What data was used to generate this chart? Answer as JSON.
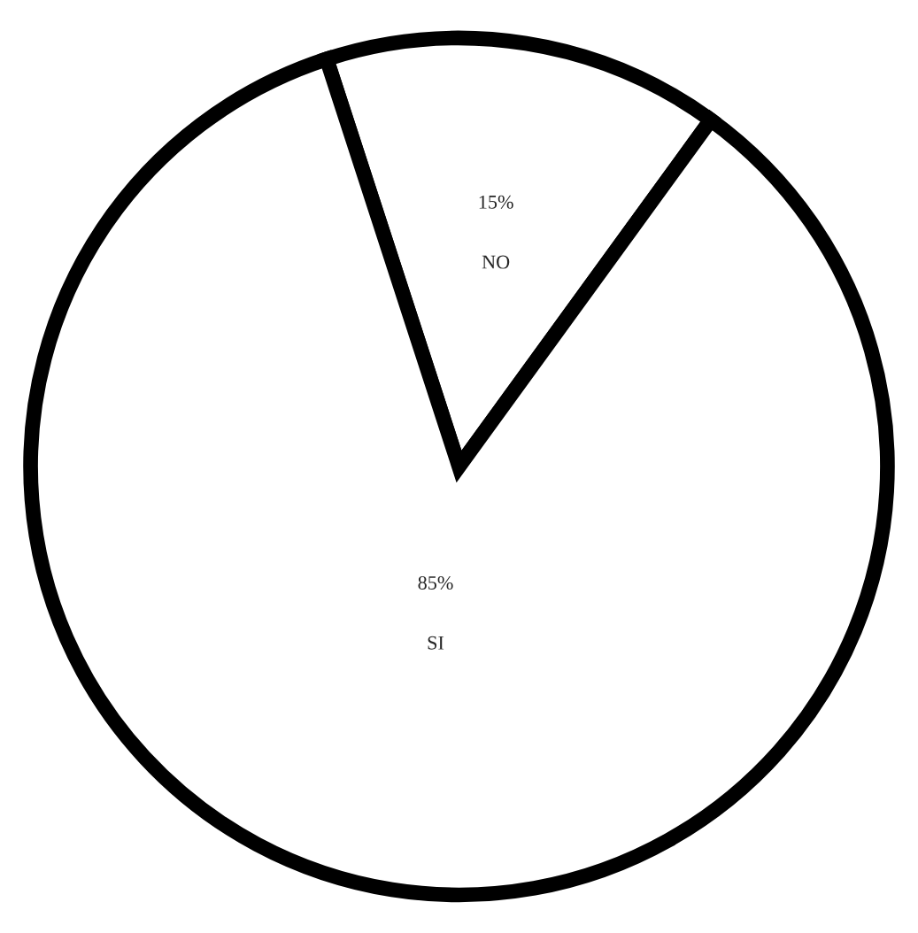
{
  "chart_data": {
    "type": "pie",
    "categories": [
      "NO",
      "SI"
    ],
    "values": [
      15,
      85
    ],
    "value_labels": [
      "15%",
      "85%"
    ],
    "colors": [
      "#ffffff",
      "#ffffff"
    ]
  }
}
